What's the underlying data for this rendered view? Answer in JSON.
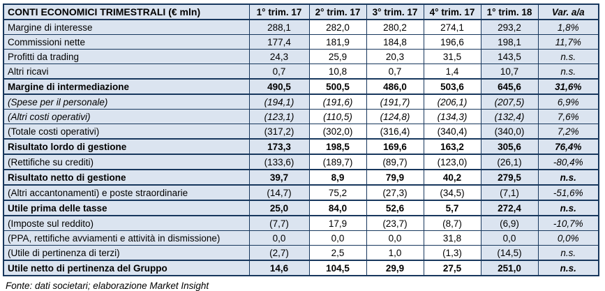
{
  "table": {
    "title": "CONTI ECONOMICI TRIMESTRALI (€ mln)",
    "columns": [
      "1° trim. 17",
      "2° trim. 17",
      "3° trim. 17",
      "4° trim. 17",
      "1° trim. 18",
      "Var. a/a"
    ],
    "rows": [
      {
        "label": "Margine di interesse",
        "values": [
          "288,1",
          "282,0",
          "280,2",
          "274,1",
          "293,2",
          "1,8%"
        ]
      },
      {
        "label": "Commissioni nette",
        "values": [
          "177,4",
          "181,9",
          "184,8",
          "196,6",
          "198,1",
          "11,7%"
        ]
      },
      {
        "label": "Profitti da trading",
        "values": [
          "24,3",
          "25,9",
          "20,3",
          "31,5",
          "143,5",
          "n.s."
        ]
      },
      {
        "label": "Altri ricavi",
        "values": [
          "0,7",
          "10,8",
          "0,7",
          "1,4",
          "10,7",
          "n.s."
        ]
      },
      {
        "label": "Margine di intermediazione",
        "values": [
          "490,5",
          "500,5",
          "486,0",
          "503,6",
          "645,6",
          "31,6%"
        ]
      },
      {
        "label": "(Spese per il personale)",
        "values": [
          "(194,1)",
          "(191,6)",
          "(191,7)",
          "(206,1)",
          "(207,5)",
          "6,9%"
        ]
      },
      {
        "label": "(Altri costi operativi)",
        "values": [
          "(123,1)",
          "(110,5)",
          "(124,8)",
          "(134,3)",
          "(132,4)",
          "7,6%"
        ]
      },
      {
        "label": "(Totale costi operativi)",
        "values": [
          "(317,2)",
          "(302,0)",
          "(316,4)",
          "(340,4)",
          "(340,0)",
          "7,2%"
        ]
      },
      {
        "label": "Risultato lordo di gestione",
        "values": [
          "173,3",
          "198,5",
          "169,6",
          "163,2",
          "305,6",
          "76,4%"
        ]
      },
      {
        "label": "(Rettifiche su crediti)",
        "values": [
          "(133,6)",
          "(189,7)",
          "(89,7)",
          "(123,0)",
          "(26,1)",
          "-80,4%"
        ]
      },
      {
        "label": "Risultato netto di gestione",
        "values": [
          "39,7",
          "8,9",
          "79,9",
          "40,2",
          "279,5",
          "n.s."
        ]
      },
      {
        "label": "(Altri accantonamenti) e poste straordinarie",
        "values": [
          "(14,7)",
          "75,2",
          "(27,3)",
          "(34,5)",
          "(7,1)",
          "-51,6%"
        ]
      },
      {
        "label": "Utile prima delle tasse",
        "values": [
          "25,0",
          "84,0",
          "52,6",
          "5,7",
          "272,4",
          "n.s."
        ]
      },
      {
        "label": "(Imposte sul reddito)",
        "values": [
          "(7,7)",
          "17,9",
          "(23,7)",
          "(8,7)",
          "(6,9)",
          "-10,7%"
        ]
      },
      {
        "label": "(PPA, rettifiche avviamenti e attività in dismissione)",
        "values": [
          "0,0",
          "0,0",
          "0,0",
          "31,8",
          "0,0",
          "0,0%"
        ]
      },
      {
        "label": "(Utile di pertinenza di terzi)",
        "values": [
          "(2,7)",
          "2,5",
          "1,0",
          "(1,3)",
          "(14,5)",
          "n.s."
        ]
      },
      {
        "label": "Utile netto di pertinenza del Gruppo",
        "values": [
          "14,6",
          "104,5",
          "29,9",
          "27,5",
          "251,0",
          "n.s."
        ]
      }
    ],
    "footer": "Fonte: dati societari; elaborazione Market Insight"
  },
  "colors": {
    "shaded_cell": "#dbe4f0",
    "border": "#17375d",
    "text": "#000000"
  }
}
